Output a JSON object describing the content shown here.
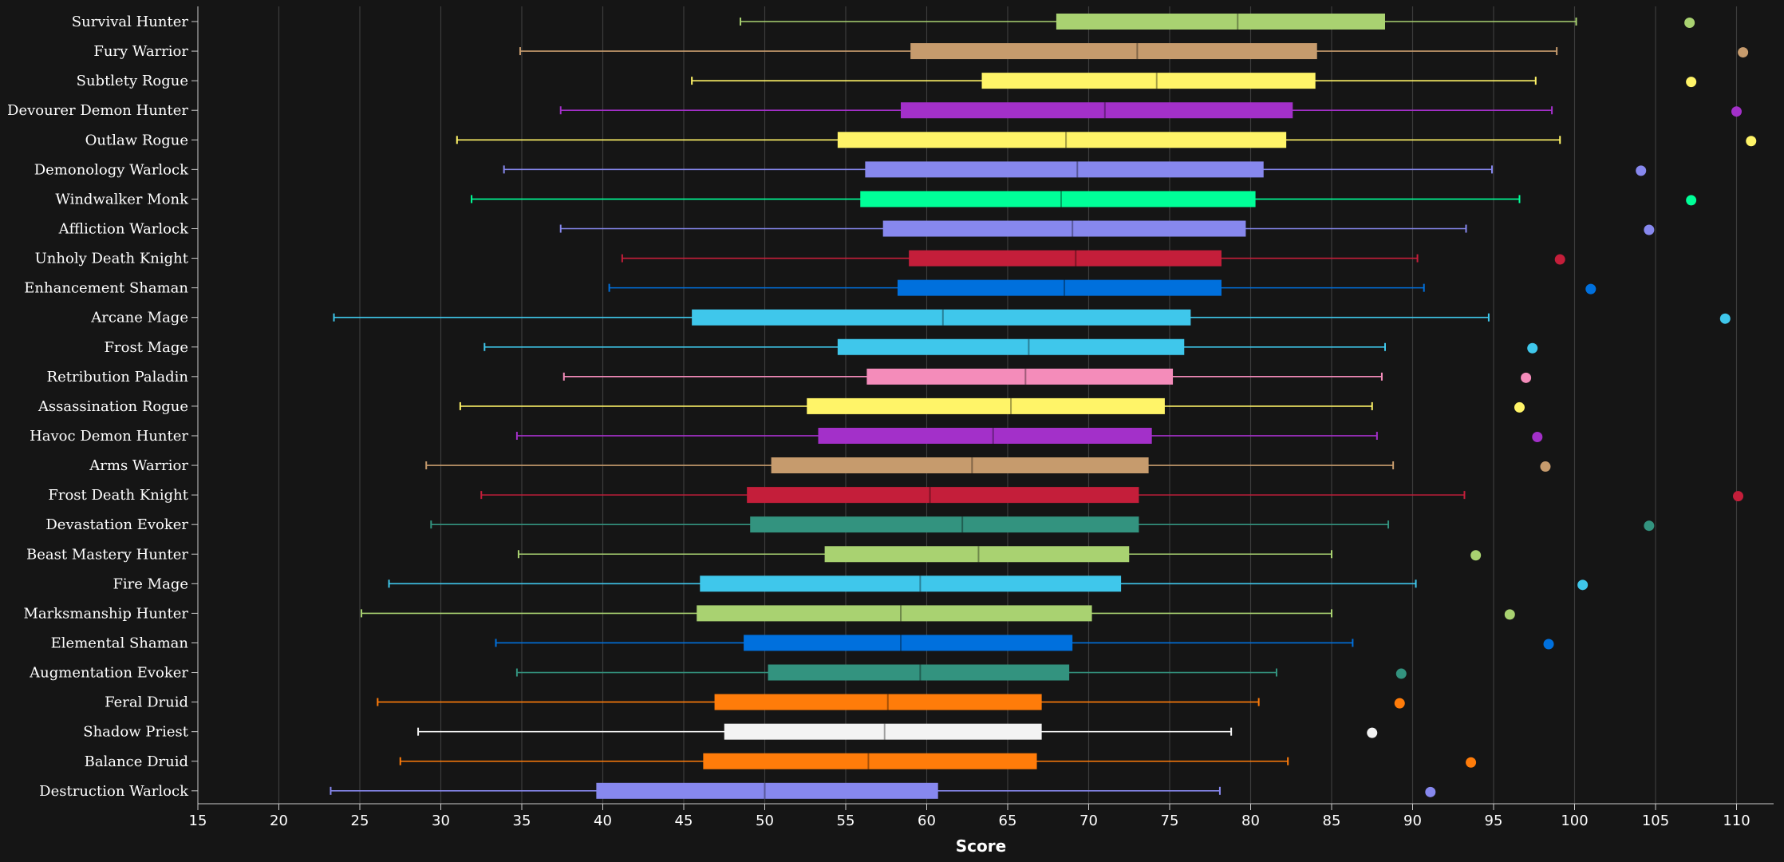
{
  "chart_data": {
    "type": "boxplot",
    "title": "",
    "xlabel": "Score",
    "ylabel": "",
    "xlim": [
      15,
      111
    ],
    "x_ticks": [
      15,
      20,
      25,
      30,
      35,
      40,
      45,
      50,
      55,
      60,
      65,
      70,
      75,
      80,
      85,
      90,
      95,
      100,
      105,
      110
    ],
    "grid": "vertical",
    "legend": "none",
    "categories": [
      {
        "name": "Survival Hunter",
        "color": "#a9d271",
        "min": 48.5,
        "q1": 68,
        "median": 79.2,
        "q3": 88.3,
        "max": 100.1,
        "outlier": 107.1
      },
      {
        "name": "Fury Warrior",
        "color": "#c69b6d",
        "min": 34.9,
        "q1": 59,
        "median": 73,
        "q3": 84.1,
        "max": 98.9,
        "outlier": 110.4
      },
      {
        "name": "Subtlety Rogue",
        "color": "#fff468",
        "min": 45.5,
        "q1": 63.4,
        "median": 74.2,
        "q3": 84,
        "max": 97.6,
        "outlier": 107.2
      },
      {
        "name": "Devourer Demon Hunter",
        "color": "#a330c9",
        "min": 37.4,
        "q1": 58.4,
        "median": 71,
        "q3": 82.6,
        "max": 98.6,
        "outlier": 110
      },
      {
        "name": "Outlaw Rogue",
        "color": "#fff468",
        "min": 31,
        "q1": 54.5,
        "median": 68.6,
        "q3": 82.2,
        "max": 99.1,
        "outlier": 110.9
      },
      {
        "name": "Demonology Warlock",
        "color": "#8788ee",
        "min": 33.9,
        "q1": 56.2,
        "median": 69.3,
        "q3": 80.8,
        "max": 94.9,
        "outlier": 104.1
      },
      {
        "name": "Windwalker Monk",
        "color": "#00ff98",
        "min": 31.9,
        "q1": 55.9,
        "median": 68.3,
        "q3": 80.3,
        "max": 96.6,
        "outlier": 107.2
      },
      {
        "name": "Affliction Warlock",
        "color": "#8788ee",
        "min": 37.4,
        "q1": 57.3,
        "median": 69,
        "q3": 79.7,
        "max": 93.3,
        "outlier": 104.6
      },
      {
        "name": "Unholy Death Knight",
        "color": "#c41e3a",
        "min": 41.2,
        "q1": 58.9,
        "median": 69.2,
        "q3": 78.2,
        "max": 90.3,
        "outlier": 99.1
      },
      {
        "name": "Enhancement Shaman",
        "color": "#0070dd",
        "min": 40.4,
        "q1": 58.2,
        "median": 68.5,
        "q3": 78.2,
        "max": 90.7,
        "outlier": 101
      },
      {
        "name": "Arcane Mage",
        "color": "#3fc7eb",
        "min": 23.4,
        "q1": 45.5,
        "median": 61,
        "q3": 76.3,
        "max": 94.7,
        "outlier": 109.3
      },
      {
        "name": "Frost Mage",
        "color": "#3fc7eb",
        "min": 32.7,
        "q1": 54.5,
        "median": 66.3,
        "q3": 75.9,
        "max": 88.3,
        "outlier": 97.4
      },
      {
        "name": "Retribution Paladin",
        "color": "#f48cba",
        "min": 37.6,
        "q1": 56.3,
        "median": 66.1,
        "q3": 75.2,
        "max": 88.1,
        "outlier": 97
      },
      {
        "name": "Assassination Rogue",
        "color": "#fff468",
        "min": 31.2,
        "q1": 52.6,
        "median": 65.2,
        "q3": 74.7,
        "max": 87.5,
        "outlier": 96.6
      },
      {
        "name": "Havoc Demon Hunter",
        "color": "#a330c9",
        "min": 34.7,
        "q1": 53.3,
        "median": 64.1,
        "q3": 73.9,
        "max": 87.8,
        "outlier": 97.7
      },
      {
        "name": "Arms Warrior",
        "color": "#c69b6d",
        "min": 29.1,
        "q1": 50.4,
        "median": 62.8,
        "q3": 73.7,
        "max": 88.8,
        "outlier": 98.2
      },
      {
        "name": "Frost Death Knight",
        "color": "#c41e3a",
        "min": 32.5,
        "q1": 48.9,
        "median": 60.2,
        "q3": 73.1,
        "max": 93.2,
        "outlier": 110.1
      },
      {
        "name": "Devastation Evoker",
        "color": "#33937f",
        "min": 29.4,
        "q1": 49.1,
        "median": 62.2,
        "q3": 73.1,
        "max": 88.5,
        "outlier": 104.6
      },
      {
        "name": "Beast Mastery Hunter",
        "color": "#a9d271",
        "min": 34.8,
        "q1": 53.7,
        "median": 63.2,
        "q3": 72.5,
        "max": 85,
        "outlier": 93.9
      },
      {
        "name": "Fire Mage",
        "color": "#3fc7eb",
        "min": 26.8,
        "q1": 46,
        "median": 59.6,
        "q3": 72,
        "max": 90.2,
        "outlier": 100.5
      },
      {
        "name": "Marksmanship Hunter",
        "color": "#a9d271",
        "min": 25.1,
        "q1": 45.8,
        "median": 58.4,
        "q3": 70.2,
        "max": 85,
        "outlier": 96
      },
      {
        "name": "Elemental Shaman",
        "color": "#0070dd",
        "min": 33.4,
        "q1": 48.7,
        "median": 58.4,
        "q3": 69,
        "max": 86.3,
        "outlier": 98.4
      },
      {
        "name": "Augmentation Evoker",
        "color": "#33937f",
        "min": 34.7,
        "q1": 50.2,
        "median": 59.6,
        "q3": 68.8,
        "max": 81.6,
        "outlier": 89.3
      },
      {
        "name": "Feral Druid",
        "color": "#ff7c0a",
        "min": 26.1,
        "q1": 46.9,
        "median": 57.6,
        "q3": 67.1,
        "max": 80.5,
        "outlier": 89.2
      },
      {
        "name": "Shadow Priest",
        "color": "#f3f3f3",
        "min": 28.6,
        "q1": 47.5,
        "median": 57.4,
        "q3": 67.1,
        "max": 78.8,
        "outlier": 87.5
      },
      {
        "name": "Balance Druid",
        "color": "#ff7c0a",
        "min": 27.5,
        "q1": 46.2,
        "median": 56.4,
        "q3": 66.8,
        "max": 82.3,
        "outlier": 93.6
      },
      {
        "name": "Destruction Warlock",
        "color": "#8788ee",
        "min": 23.2,
        "q1": 39.6,
        "median": 50,
        "q3": 60.7,
        "max": 78.1,
        "outlier": 91.1
      }
    ]
  }
}
